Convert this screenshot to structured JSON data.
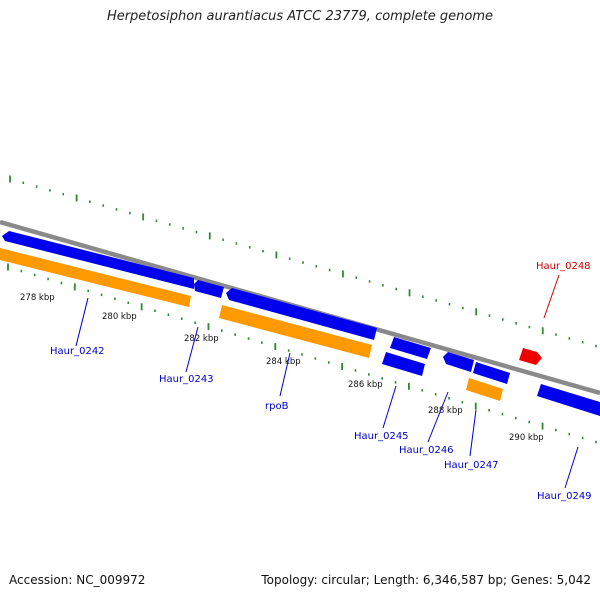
{
  "title": "Herpetosiphon aurantiacus ATCC 23779, complete genome",
  "footer": {
    "accession": "Accession: NC_009972",
    "summary": "Topology: circular; Length: 6,346,587 bp; Genes: 5,042"
  },
  "colors": {
    "backbone": "#8a8a8a",
    "gene_forward": "#0000ee",
    "gene_reverse": "#ff9900",
    "gene_highlight": "#ee0000",
    "tick": "#2e8b2e",
    "label": "#0000cc",
    "label_highlight": "#cc0000"
  },
  "scale_labels": [
    "278 kbp",
    "280 kbp",
    "282 kbp",
    "284 kbp",
    "286 kbp",
    "288 kbp",
    "290 kbp"
  ],
  "genes": [
    {
      "id": "g1",
      "label": "Haur_0242",
      "color": "blue"
    },
    {
      "id": "g2",
      "label": "Haur_0243",
      "color": "blue"
    },
    {
      "id": "g3",
      "label": "rpoB",
      "color": "blue"
    },
    {
      "id": "g4",
      "label": "Haur_0245",
      "color": "blue"
    },
    {
      "id": "g5",
      "label": "Haur_0246",
      "color": "blue"
    },
    {
      "id": "g6",
      "label": "Haur_0247",
      "color": "blue"
    },
    {
      "id": "g7",
      "label": "Haur_0248",
      "color": "red"
    },
    {
      "id": "g8",
      "label": "Haur_0249",
      "color": "blue"
    }
  ]
}
